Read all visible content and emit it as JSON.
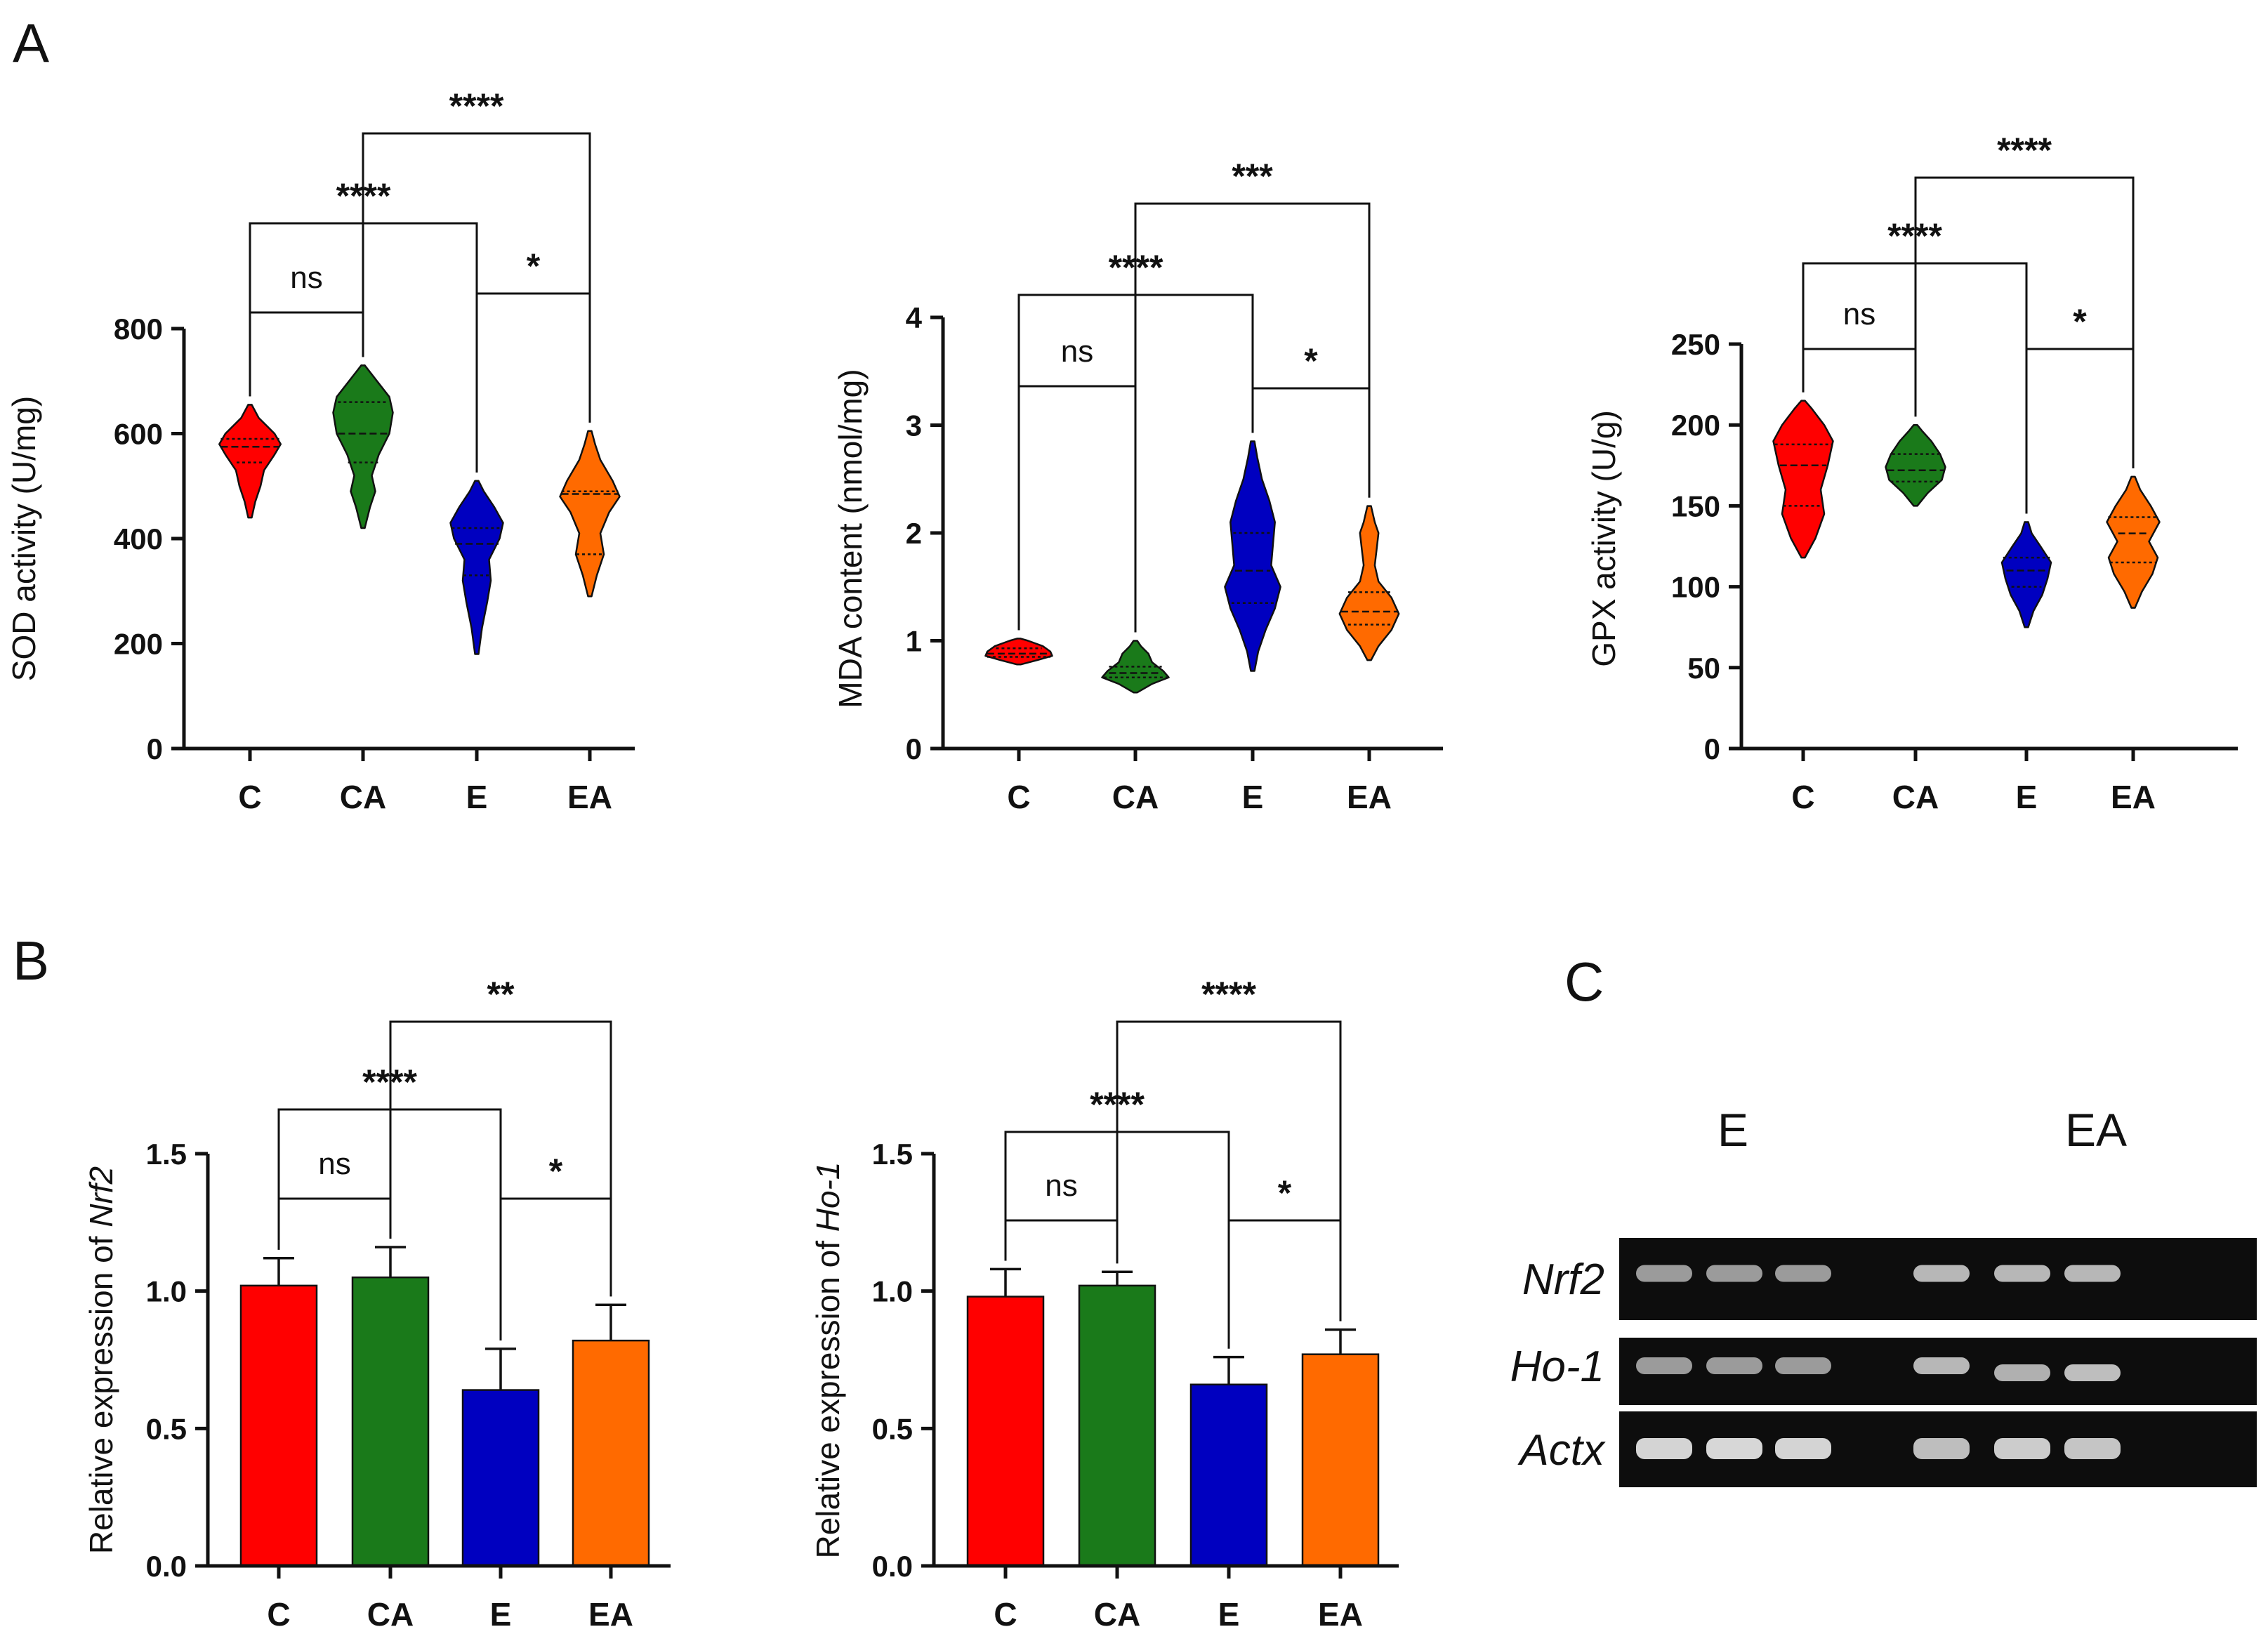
{
  "panels": {
    "A": "A",
    "B": "B",
    "C": "C"
  },
  "colors": {
    "C": "#ff0000",
    "CA": "#1a7a1a",
    "E": "#0000c0",
    "EA": "#ff6a00"
  },
  "chart_data": [
    {
      "id": "sod",
      "type": "violin",
      "panel": "A",
      "title": "",
      "xlabel": "",
      "ylabel": "SOD activity (U/mg)",
      "ylim": [
        0,
        800
      ],
      "yticks": [
        0,
        200,
        400,
        600,
        800
      ],
      "categories": [
        "C",
        "CA",
        "E",
        "EA"
      ],
      "series": [
        {
          "name": "C",
          "median": 575,
          "q1": 545,
          "q3": 590,
          "min": 440,
          "max": 655,
          "density": [
            [
              440,
              0.02
            ],
            [
              470,
              0.06
            ],
            [
              500,
              0.12
            ],
            [
              530,
              0.16
            ],
            [
              560,
              0.28
            ],
            [
              580,
              0.35
            ],
            [
              600,
              0.28
            ],
            [
              630,
              0.1
            ],
            [
              655,
              0.02
            ]
          ]
        },
        {
          "name": "CA",
          "median": 600,
          "q1": 545,
          "q3": 660,
          "min": 420,
          "max": 730,
          "density": [
            [
              420,
              0.02
            ],
            [
              460,
              0.08
            ],
            [
              490,
              0.14
            ],
            [
              520,
              0.1
            ],
            [
              560,
              0.18
            ],
            [
              600,
              0.3
            ],
            [
              640,
              0.34
            ],
            [
              670,
              0.3
            ],
            [
              700,
              0.16
            ],
            [
              730,
              0.02
            ]
          ]
        },
        {
          "name": "E",
          "median": 390,
          "q1": 330,
          "q3": 420,
          "min": 180,
          "max": 510,
          "density": [
            [
              180,
              0.02
            ],
            [
              230,
              0.06
            ],
            [
              280,
              0.12
            ],
            [
              320,
              0.16
            ],
            [
              360,
              0.14
            ],
            [
              400,
              0.26
            ],
            [
              430,
              0.3
            ],
            [
              460,
              0.2
            ],
            [
              490,
              0.08
            ],
            [
              510,
              0.02
            ]
          ]
        },
        {
          "name": "EA",
          "median": 485,
          "q1": 370,
          "q3": 490,
          "min": 290,
          "max": 605,
          "density": [
            [
              290,
              0.02
            ],
            [
              330,
              0.08
            ],
            [
              370,
              0.16
            ],
            [
              410,
              0.12
            ],
            [
              450,
              0.22
            ],
            [
              480,
              0.34
            ],
            [
              510,
              0.26
            ],
            [
              550,
              0.12
            ],
            [
              580,
              0.06
            ],
            [
              605,
              0.02
            ]
          ]
        }
      ],
      "comparisons": [
        {
          "a": "C",
          "b": "CA",
          "label": "ns"
        },
        {
          "a": "C",
          "b": "E",
          "label": "****"
        },
        {
          "a": "E",
          "b": "EA",
          "label": "*"
        },
        {
          "a": "CA",
          "b": "EA",
          "label": "****"
        }
      ]
    },
    {
      "id": "mda",
      "type": "violin",
      "panel": "A",
      "title": "",
      "xlabel": "",
      "ylabel": "MDA content (nmol/mg)",
      "ylim": [
        0,
        4
      ],
      "yticks": [
        0,
        1,
        2,
        3,
        4
      ],
      "categories": [
        "C",
        "CA",
        "E",
        "EA"
      ],
      "series": [
        {
          "name": "C",
          "median": 0.88,
          "q1": 0.85,
          "q3": 0.93,
          "min": 0.78,
          "max": 1.02,
          "density": [
            [
              0.78,
              0.02
            ],
            [
              0.82,
              0.2
            ],
            [
              0.86,
              0.36
            ],
            [
              0.9,
              0.34
            ],
            [
              0.95,
              0.26
            ],
            [
              1.0,
              0.1
            ],
            [
              1.02,
              0.02
            ]
          ]
        },
        {
          "name": "CA",
          "median": 0.7,
          "q1": 0.66,
          "q3": 0.76,
          "min": 0.52,
          "max": 1.0,
          "density": [
            [
              0.52,
              0.02
            ],
            [
              0.6,
              0.18
            ],
            [
              0.66,
              0.36
            ],
            [
              0.72,
              0.3
            ],
            [
              0.8,
              0.18
            ],
            [
              0.88,
              0.14
            ],
            [
              0.95,
              0.06
            ],
            [
              1.0,
              0.02
            ]
          ]
        },
        {
          "name": "E",
          "median": 1.65,
          "q1": 1.35,
          "q3": 2.0,
          "min": 0.72,
          "max": 2.85,
          "density": [
            [
              0.72,
              0.02
            ],
            [
              0.9,
              0.06
            ],
            [
              1.1,
              0.14
            ],
            [
              1.3,
              0.24
            ],
            [
              1.5,
              0.3
            ],
            [
              1.7,
              0.2
            ],
            [
              1.9,
              0.22
            ],
            [
              2.1,
              0.24
            ],
            [
              2.3,
              0.18
            ],
            [
              2.5,
              0.1
            ],
            [
              2.7,
              0.05
            ],
            [
              2.85,
              0.02
            ]
          ]
        },
        {
          "name": "EA",
          "median": 1.27,
          "q1": 1.15,
          "q3": 1.45,
          "min": 0.82,
          "max": 2.25,
          "density": [
            [
              0.82,
              0.02
            ],
            [
              0.95,
              0.1
            ],
            [
              1.1,
              0.24
            ],
            [
              1.25,
              0.32
            ],
            [
              1.4,
              0.24
            ],
            [
              1.55,
              0.1
            ],
            [
              1.7,
              0.06
            ],
            [
              1.85,
              0.08
            ],
            [
              2.0,
              0.1
            ],
            [
              2.1,
              0.06
            ],
            [
              2.25,
              0.02
            ]
          ]
        }
      ],
      "comparisons": [
        {
          "a": "C",
          "b": "CA",
          "label": "ns"
        },
        {
          "a": "C",
          "b": "E",
          "label": "****"
        },
        {
          "a": "E",
          "b": "EA",
          "label": "*"
        },
        {
          "a": "CA",
          "b": "EA",
          "label": "***"
        }
      ]
    },
    {
      "id": "gpx",
      "type": "violin",
      "panel": "A",
      "title": "",
      "xlabel": "",
      "ylabel": "GPX activity (U/g)",
      "ylim": [
        0,
        250
      ],
      "yticks": [
        0,
        50,
        100,
        150,
        200,
        250
      ],
      "categories": [
        "C",
        "CA",
        "E",
        "EA"
      ],
      "series": [
        {
          "name": "C",
          "median": 175,
          "q1": 150,
          "q3": 188,
          "min": 118,
          "max": 215,
          "density": [
            [
              118,
              0.02
            ],
            [
              130,
              0.14
            ],
            [
              145,
              0.24
            ],
            [
              160,
              0.2
            ],
            [
              175,
              0.28
            ],
            [
              190,
              0.34
            ],
            [
              200,
              0.24
            ],
            [
              210,
              0.1
            ],
            [
              215,
              0.02
            ]
          ]
        },
        {
          "name": "CA",
          "median": 172,
          "q1": 165,
          "q3": 182,
          "min": 150,
          "max": 200,
          "density": [
            [
              150,
              0.02
            ],
            [
              158,
              0.14
            ],
            [
              166,
              0.3
            ],
            [
              174,
              0.34
            ],
            [
              182,
              0.28
            ],
            [
              190,
              0.18
            ],
            [
              196,
              0.08
            ],
            [
              200,
              0.02
            ]
          ]
        },
        {
          "name": "E",
          "median": 110,
          "q1": 100,
          "q3": 118,
          "min": 75,
          "max": 140,
          "density": [
            [
              75,
              0.02
            ],
            [
              85,
              0.08
            ],
            [
              95,
              0.18
            ],
            [
              105,
              0.24
            ],
            [
              115,
              0.28
            ],
            [
              125,
              0.16
            ],
            [
              133,
              0.06
            ],
            [
              140,
              0.02
            ]
          ]
        },
        {
          "name": "EA",
          "median": 133,
          "q1": 115,
          "q3": 143,
          "min": 87,
          "max": 168,
          "density": [
            [
              87,
              0.02
            ],
            [
              97,
              0.1
            ],
            [
              108,
              0.22
            ],
            [
              118,
              0.28
            ],
            [
              128,
              0.18
            ],
            [
              140,
              0.3
            ],
            [
              150,
              0.2
            ],
            [
              160,
              0.08
            ],
            [
              168,
              0.02
            ]
          ]
        }
      ],
      "comparisons": [
        {
          "a": "C",
          "b": "CA",
          "label": "ns"
        },
        {
          "a": "C",
          "b": "E",
          "label": "****"
        },
        {
          "a": "E",
          "b": "EA",
          "label": "*"
        },
        {
          "a": "CA",
          "b": "EA",
          "label": "****"
        }
      ]
    },
    {
      "id": "nrf2",
      "type": "bar",
      "panel": "B",
      "title": "",
      "xlabel": "",
      "ylabel": "Relative expression of ",
      "ylabel_gene": "Nrf2",
      "ylim": [
        0,
        1.5
      ],
      "yticks": [
        "0.0",
        "0.5",
        "1.0",
        "1.5"
      ],
      "categories": [
        "C",
        "CA",
        "E",
        "EA"
      ],
      "values": [
        1.02,
        1.05,
        0.64,
        0.82
      ],
      "errors": [
        0.1,
        0.11,
        0.15,
        0.13
      ],
      "comparisons": [
        {
          "a": "C",
          "b": "CA",
          "label": "ns"
        },
        {
          "a": "C",
          "b": "E",
          "label": "****"
        },
        {
          "a": "E",
          "b": "EA",
          "label": "*"
        },
        {
          "a": "CA",
          "b": "EA",
          "label": "**"
        }
      ]
    },
    {
      "id": "ho1",
      "type": "bar",
      "panel": "B",
      "title": "",
      "xlabel": "",
      "ylabel": "Relative expression of ",
      "ylabel_gene": "Ho-1",
      "ylim": [
        0,
        1.5
      ],
      "yticks": [
        "0.0",
        "0.5",
        "1.0",
        "1.5"
      ],
      "categories": [
        "C",
        "CA",
        "E",
        "EA"
      ],
      "values": [
        0.98,
        1.02,
        0.66,
        0.77
      ],
      "errors": [
        0.1,
        0.05,
        0.1,
        0.09
      ],
      "comparisons": [
        {
          "a": "C",
          "b": "CA",
          "label": "ns"
        },
        {
          "a": "C",
          "b": "E",
          "label": "****"
        },
        {
          "a": "E",
          "b": "EA",
          "label": "*"
        },
        {
          "a": "CA",
          "b": "EA",
          "label": "****"
        }
      ]
    }
  ],
  "gel": {
    "groups": [
      "E",
      "EA"
    ],
    "genes": [
      "Nrf2",
      "Ho-1",
      "Actx"
    ],
    "band_intensity": {
      "Nrf2": [
        0.55,
        0.55,
        0.55,
        0.75,
        0.75,
        0.75
      ],
      "Ho-1": [
        0.55,
        0.55,
        0.55,
        0.75,
        0.7,
        0.8
      ],
      "Actx": [
        0.95,
        0.98,
        0.95,
        0.8,
        0.9,
        0.85
      ]
    }
  }
}
